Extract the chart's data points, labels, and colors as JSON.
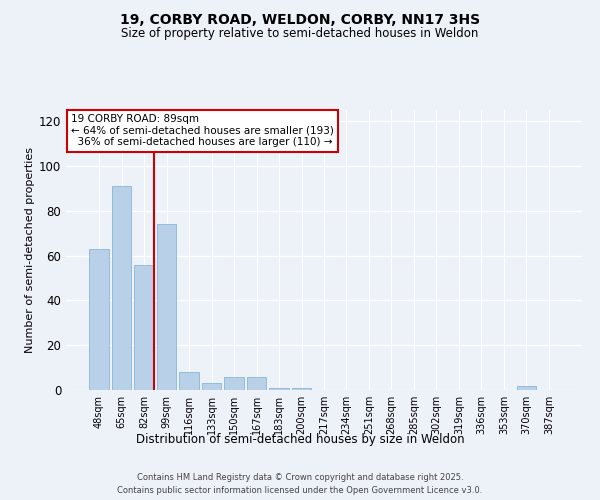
{
  "title_line1": "19, CORBY ROAD, WELDON, CORBY, NN17 3HS",
  "title_line2": "Size of property relative to semi-detached houses in Weldon",
  "xlabel": "Distribution of semi-detached houses by size in Weldon",
  "ylabel": "Number of semi-detached properties",
  "categories": [
    "48sqm",
    "65sqm",
    "82sqm",
    "99sqm",
    "116sqm",
    "133sqm",
    "150sqm",
    "167sqm",
    "183sqm",
    "200sqm",
    "217sqm",
    "234sqm",
    "251sqm",
    "268sqm",
    "285sqm",
    "302sqm",
    "319sqm",
    "336sqm",
    "353sqm",
    "370sqm",
    "387sqm"
  ],
  "values": [
    63,
    91,
    56,
    74,
    8,
    3,
    6,
    6,
    1,
    1,
    0,
    0,
    0,
    0,
    0,
    0,
    0,
    0,
    0,
    2,
    0
  ],
  "bar_color": "#b8d0e8",
  "bar_edge_color": "#7aafd4",
  "annotation_text_line1": "19 CORBY ROAD: 89sqm",
  "annotation_text_line2": "← 64% of semi-detached houses are smaller (193)",
  "annotation_text_line3": "  36% of semi-detached houses are larger (110) →",
  "vline_color": "#cc0000",
  "ylim": [
    0,
    125
  ],
  "yticks": [
    0,
    20,
    40,
    60,
    80,
    100,
    120
  ],
  "footer_line1": "Contains HM Land Registry data © Crown copyright and database right 2025.",
  "footer_line2": "Contains public sector information licensed under the Open Government Licence v3.0.",
  "bg_color": "#edf1f8",
  "grid_color": "#ffffff",
  "annotation_box_color": "#ffffff",
  "annotation_box_edge": "#cc0000",
  "title_fontsize": 10,
  "subtitle_fontsize": 8.5
}
